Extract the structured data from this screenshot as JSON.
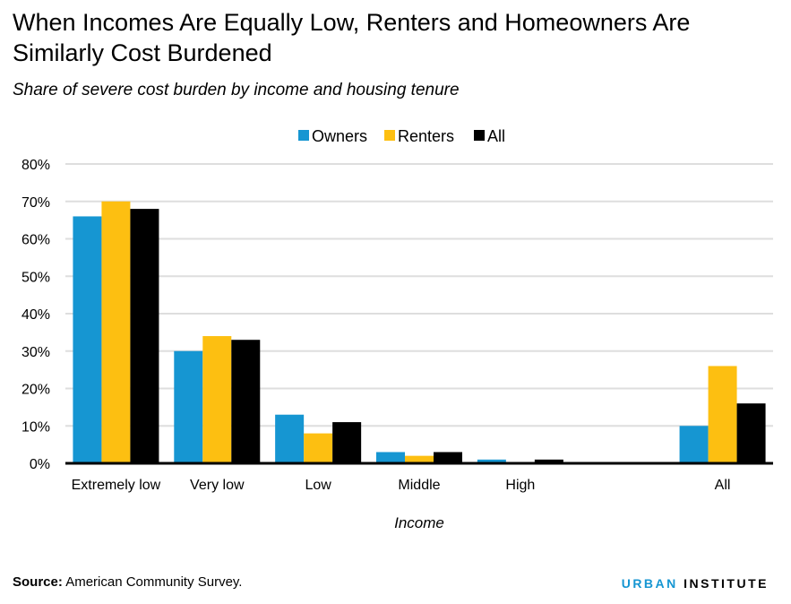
{
  "title": "When Incomes Are Equally Low, Renters and Homeowners Are Similarly Cost Burdened",
  "subtitle": "Share of severe cost burden by income and housing tenure",
  "source_label": "Source:",
  "source_text": " American Community Survey.",
  "logo": {
    "part1": "URBAN",
    "part2": "INSTITUTE",
    "color1": "#1696d2",
    "color2": "#000000"
  },
  "chart_data": {
    "type": "bar",
    "xlabel": "Income",
    "ylabel": "",
    "ylim": [
      0,
      80
    ],
    "yticks": [
      "0%",
      "10%",
      "20%",
      "30%",
      "40%",
      "50%",
      "60%",
      "70%",
      "80%"
    ],
    "grid": true,
    "legend_position": "top",
    "categories": [
      "Extremely low",
      "Very low",
      "Low",
      "Middle",
      "High",
      "",
      "All"
    ],
    "series": [
      {
        "name": "Owners",
        "color": "#1696d2",
        "values": [
          66,
          30,
          13,
          3,
          1,
          null,
          10
        ]
      },
      {
        "name": "Renters",
        "color": "#fdbf11",
        "values": [
          70,
          34,
          8,
          2,
          0,
          null,
          26
        ]
      },
      {
        "name": "All",
        "color": "#000000",
        "values": [
          68,
          33,
          11,
          3,
          1,
          null,
          16
        ]
      }
    ]
  }
}
